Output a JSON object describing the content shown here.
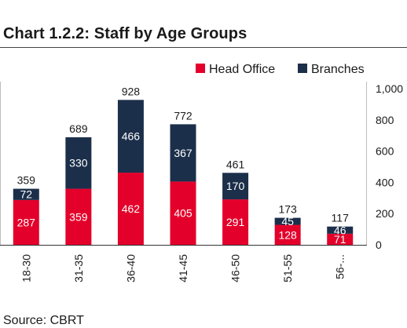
{
  "chart_data": {
    "type": "bar",
    "stacked": true,
    "title": "Chart 1.2.2: Staff by Age Groups",
    "source": "Source: CBRT",
    "categories": [
      "18-30",
      "31-35",
      "36-40",
      "41-45",
      "46-50",
      "51-55",
      "56-..."
    ],
    "series": [
      {
        "name": "Head Office",
        "color": "#e3002b",
        "values": [
          287,
          359,
          462,
          405,
          291,
          128,
          71
        ]
      },
      {
        "name": "Branches",
        "color": "#1c2f4a",
        "values": [
          72,
          330,
          466,
          367,
          170,
          45,
          46
        ]
      }
    ],
    "totals": [
      359,
      689,
      928,
      772,
      461,
      173,
      117
    ],
    "yticks": [
      "0",
      "200",
      "400",
      "600",
      "800",
      "1,000"
    ],
    "ylim": [
      0,
      1000
    ],
    "legend_position": "top-right",
    "grid": false
  }
}
